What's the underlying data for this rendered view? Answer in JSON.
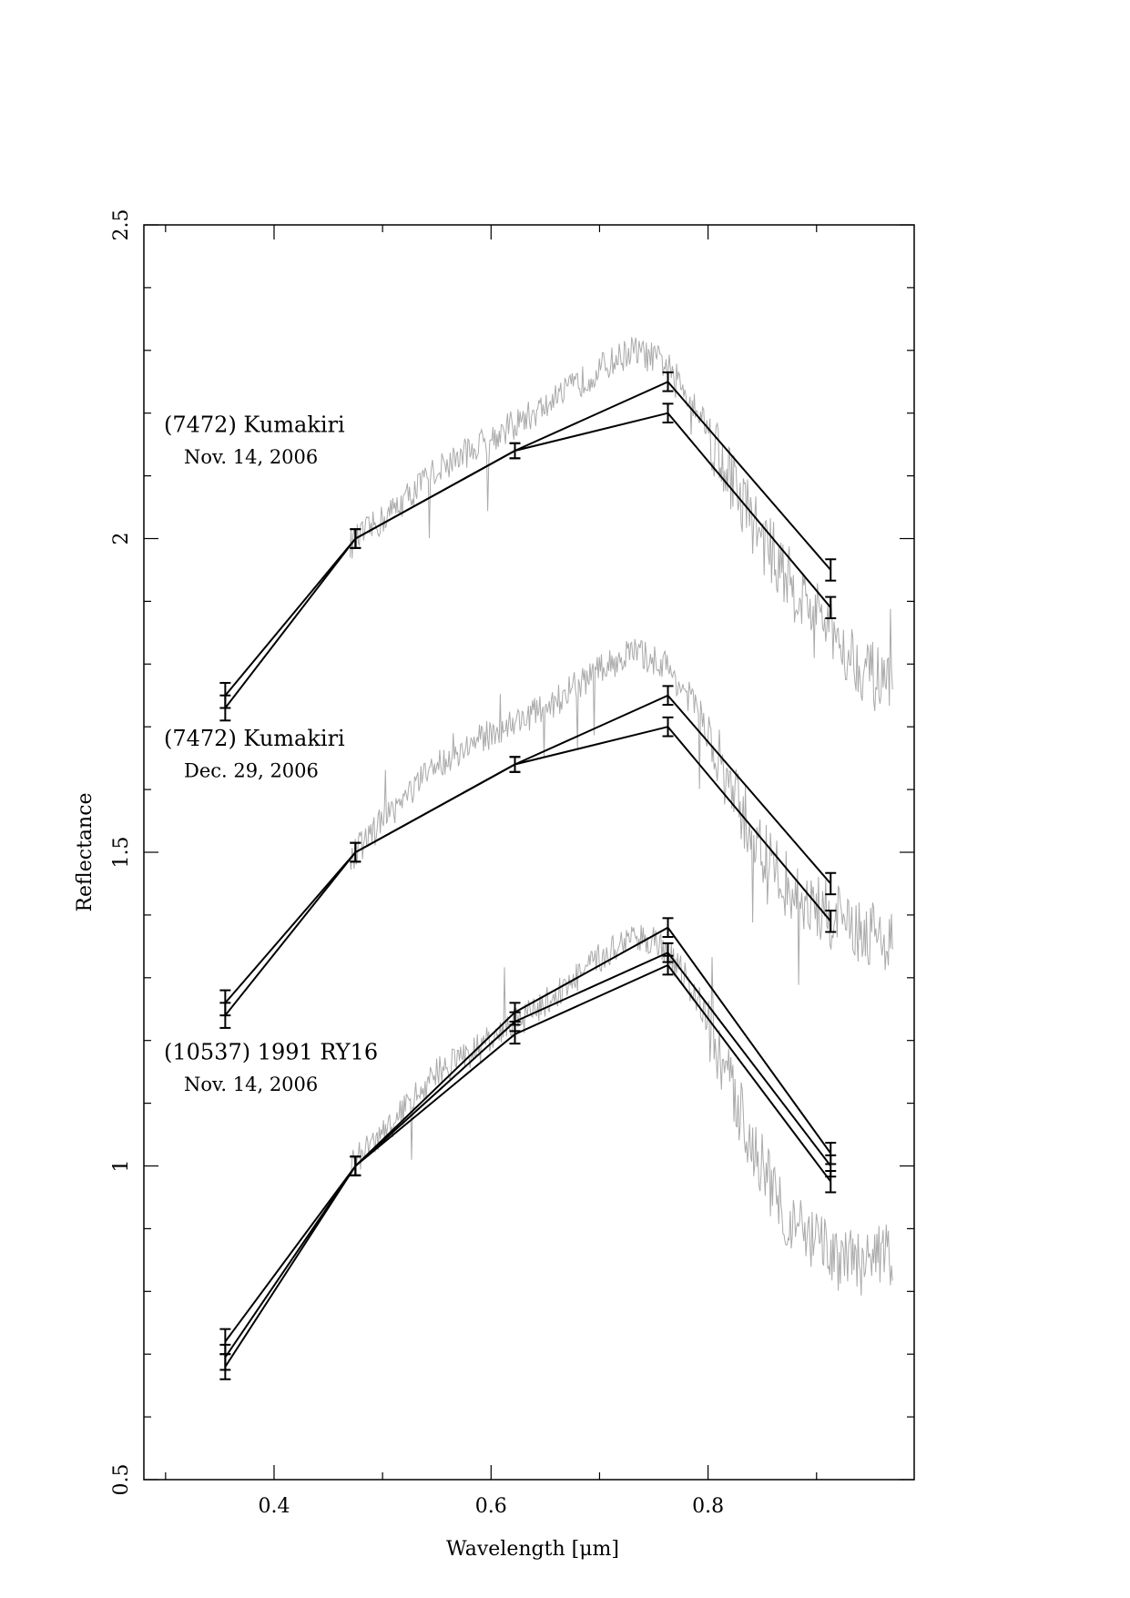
{
  "chart_data": {
    "type": "line",
    "title": "",
    "xlabel": "Wavelength [μm]",
    "ylabel": "Reflectance",
    "xlim": [
      0.28,
      0.99
    ],
    "ylim": [
      0.5,
      2.5
    ],
    "x_ticks": [
      0.4,
      0.6,
      0.8
    ],
    "x_tick_labels": [
      "0.4",
      "0.6",
      "0.8"
    ],
    "y_ticks": [
      0.5,
      1,
      1.5,
      2,
      2.5
    ],
    "y_tick_labels": [
      "0.5",
      "1",
      "1.5",
      "2",
      "2.5"
    ],
    "grid": false,
    "legend": "none",
    "colors": {
      "photometry": "#000000",
      "spectrum": "#aaaaaa"
    },
    "x": [
      0.355,
      0.475,
      0.622,
      0.763,
      0.913
    ],
    "groups": [
      {
        "label": "(7472) Kumakiri",
        "date": "Nov. 14, 2006",
        "series": [
          {
            "values": [
              1.75,
              2.0,
              2.14,
              2.25,
              1.95
            ],
            "errors": [
              0.02,
              0.015,
              0.012,
              0.015,
              0.017
            ]
          },
          {
            "values": [
              1.73,
              2.0,
              2.14,
              2.2,
              1.89
            ],
            "errors": [
              0.02,
              0.015,
              0.012,
              0.015,
              0.017
            ]
          }
        ]
      },
      {
        "label": "(7472) Kumakiri",
        "date": "Dec. 29, 2006",
        "series": [
          {
            "values": [
              1.26,
              1.5,
              1.64,
              1.75,
              1.45
            ],
            "errors": [
              0.02,
              0.015,
              0.012,
              0.015,
              0.017
            ]
          },
          {
            "values": [
              1.24,
              1.5,
              1.64,
              1.7,
              1.39
            ],
            "errors": [
              0.02,
              0.015,
              0.012,
              0.015,
              0.017
            ]
          }
        ]
      },
      {
        "label": "(10537) 1991 RY16",
        "date": "Nov. 14, 2006",
        "series": [
          {
            "values": [
              0.72,
              1.0,
              1.245,
              1.38,
              1.02
            ],
            "errors": [
              0.02,
              0.015,
              0.015,
              0.015,
              0.017
            ]
          },
          {
            "values": [
              0.695,
              1.0,
              1.23,
              1.34,
              1.0
            ],
            "errors": [
              0.02,
              0.015,
              0.015,
              0.015,
              0.017
            ]
          },
          {
            "values": [
              0.68,
              1.0,
              1.21,
              1.32,
              0.975
            ],
            "errors": [
              0.02,
              0.015,
              0.015,
              0.015,
              0.017
            ]
          }
        ]
      }
    ],
    "spectra": [
      {
        "x": [
          0.47,
          0.5,
          0.55,
          0.6,
          0.65,
          0.7,
          0.73,
          0.76,
          0.79,
          0.82,
          0.85,
          0.88,
          0.91,
          0.94,
          0.97
        ],
        "values": [
          1.99,
          2.03,
          2.11,
          2.16,
          2.21,
          2.27,
          2.3,
          2.28,
          2.21,
          2.1,
          2.0,
          1.92,
          1.86,
          1.8,
          1.75
        ]
      },
      {
        "x": [
          0.47,
          0.5,
          0.55,
          0.6,
          0.65,
          0.7,
          0.73,
          0.76,
          0.79,
          0.82,
          0.85,
          0.88,
          0.91,
          0.94,
          0.97
        ],
        "values": [
          1.49,
          1.55,
          1.64,
          1.69,
          1.73,
          1.79,
          1.82,
          1.8,
          1.73,
          1.6,
          1.5,
          1.43,
          1.4,
          1.38,
          1.36
        ]
      },
      {
        "x": [
          0.47,
          0.5,
          0.55,
          0.6,
          0.65,
          0.7,
          0.73,
          0.76,
          0.79,
          0.82,
          0.85,
          0.88,
          0.91,
          0.94,
          0.97
        ],
        "values": [
          1.0,
          1.05,
          1.15,
          1.2,
          1.26,
          1.33,
          1.37,
          1.35,
          1.27,
          1.13,
          1.0,
          0.9,
          0.86,
          0.84,
          0.86
        ]
      }
    ]
  }
}
